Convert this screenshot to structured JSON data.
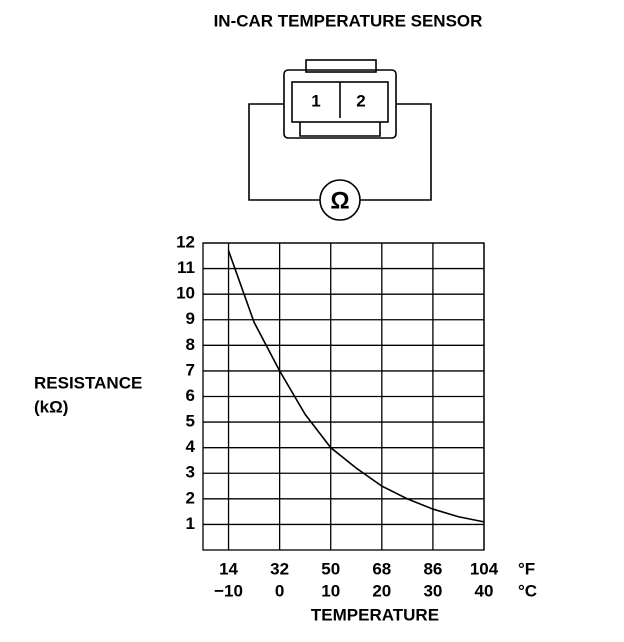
{
  "chart_data": {
    "type": "line",
    "title": "IN-CAR TEMPERATURE SENSOR",
    "connector_pins": [
      "1",
      "2"
    ],
    "meter_symbol": "Ω",
    "y_label": "RESISTANCE",
    "y_unit": "(kΩ)",
    "x_label": "TEMPERATURE",
    "x_unit": "°C",
    "x2_unit": "°F",
    "x": [
      -10,
      -5,
      0,
      5,
      10,
      15,
      20,
      25,
      30,
      35,
      40
    ],
    "values": [
      11.7,
      8.9,
      7.0,
      5.3,
      4.0,
      3.2,
      2.5,
      2.0,
      1.6,
      1.3,
      1.1
    ],
    "color": "#000000",
    "xlim": [
      -15,
      40
    ],
    "xticks": [
      {
        "value": -10,
        "label": "−10"
      },
      0,
      10,
      20,
      30,
      40
    ],
    "x2ticks": [
      {
        "value": -10,
        "label": "14"
      },
      {
        "value": 0,
        "label": "32"
      },
      {
        "value": 10,
        "label": "50"
      },
      {
        "value": 20,
        "label": "68"
      },
      {
        "value": 30,
        "label": "86"
      },
      {
        "value": 40,
        "label": "104"
      }
    ],
    "ylim": [
      0,
      12
    ],
    "yticks": [
      1,
      2,
      3,
      4,
      5,
      6,
      7,
      8,
      9,
      10,
      11,
      12
    ],
    "grid": true
  }
}
